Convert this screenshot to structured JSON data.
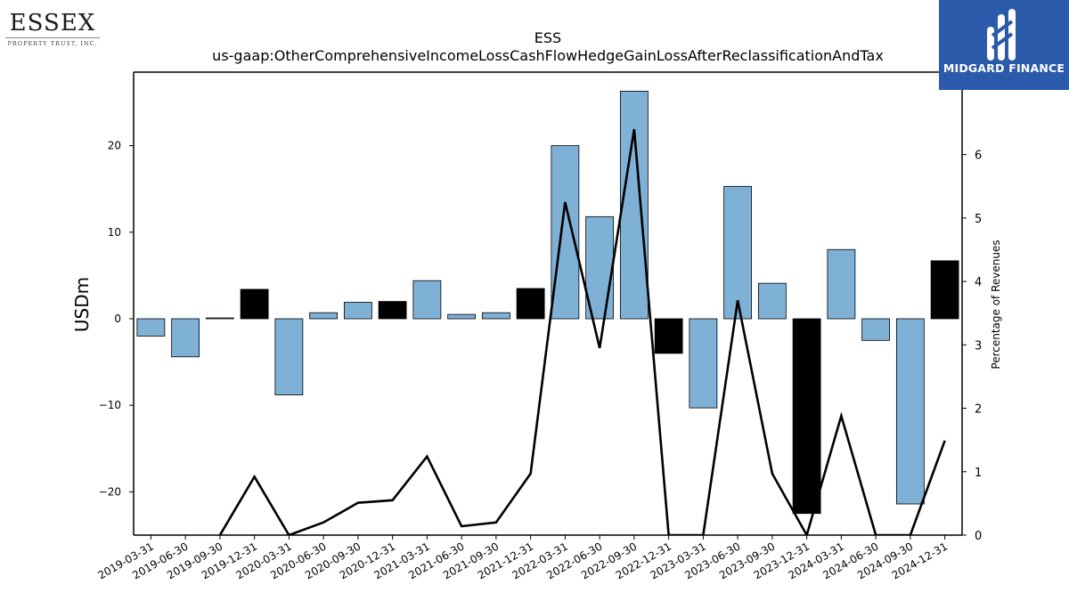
{
  "logos": {
    "left_name": "ESSEX",
    "left_sub": "PROPERTY TRUST, INC.",
    "right_brand": "MIDGARD FINANCE"
  },
  "colors": {
    "positive_bar": "#7fb0d6",
    "highlight_bar": "#000000",
    "line": "#000000",
    "brand_blue": "#2b5aab"
  },
  "chart_data": {
    "type": "bar",
    "title": "ESS",
    "subtitle": "us-gaap:OtherComprehensiveIncomeLossCashFlowHedgeGainLossAfterReclassificationAndTax",
    "ylabel": "USDm",
    "y2label": "Percentage of Revenues",
    "ylim": [
      -25,
      28.5
    ],
    "y2lim": [
      0,
      7.3
    ],
    "yticks": [
      -20,
      -10,
      0,
      10,
      20
    ],
    "y2ticks": [
      0,
      1,
      2,
      3,
      4,
      5,
      6
    ],
    "grid": false,
    "categories": [
      "2019-03-31",
      "2019-06-30",
      "2019-09-30",
      "2019-12-31",
      "2020-03-31",
      "2020-06-30",
      "2020-09-30",
      "2020-12-31",
      "2021-03-31",
      "2021-06-30",
      "2021-09-30",
      "2021-12-31",
      "2022-03-31",
      "2022-06-30",
      "2022-09-30",
      "2022-12-31",
      "2023-03-31",
      "2023-06-30",
      "2023-09-30",
      "2023-12-31",
      "2024-03-31",
      "2024-06-30",
      "2024-09-30",
      "2024-12-31"
    ],
    "series": [
      {
        "kind": "bar",
        "axis": "left",
        "values": [
          -2.0,
          -4.4,
          0.1,
          3.4,
          -8.8,
          0.7,
          1.9,
          2.0,
          4.4,
          0.5,
          0.7,
          3.5,
          20.0,
          11.8,
          26.3,
          -4.0,
          -10.3,
          15.3,
          4.1,
          -22.5,
          8.0,
          -2.5,
          -21.4,
          6.7
        ],
        "highlight": [
          false,
          false,
          false,
          true,
          false,
          false,
          false,
          true,
          false,
          false,
          false,
          true,
          false,
          false,
          false,
          true,
          false,
          false,
          false,
          true,
          false,
          false,
          false,
          true
        ]
      },
      {
        "kind": "line",
        "axis": "right",
        "values": [
          null,
          null,
          0.0,
          0.92,
          0.0,
          0.2,
          0.51,
          0.55,
          1.24,
          0.14,
          0.2,
          0.97,
          5.25,
          2.95,
          6.4,
          0.0,
          0.0,
          3.7,
          0.97,
          0.0,
          1.88,
          0.0,
          0.0,
          1.49
        ]
      }
    ]
  }
}
